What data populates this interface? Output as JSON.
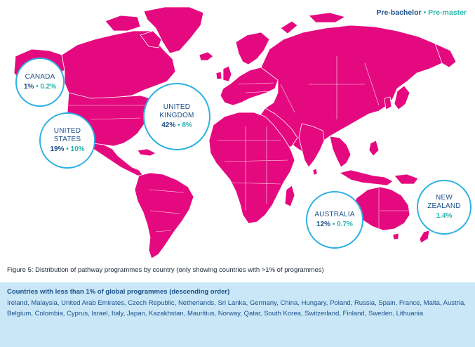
{
  "legend": {
    "pre_bachelor": "Pre-bachelor",
    "separator": "•",
    "pre_master": "Pre-master"
  },
  "colors": {
    "land": "#e5097f",
    "bubble_border": "#2db0e3",
    "pre_bachelor": "#1b4f8a",
    "pre_master": "#27b5b0",
    "info_box": "#c9e7f7"
  },
  "countries": [
    {
      "name_line1": "CANADA",
      "name_line2": "",
      "pre_bachelor": "1%",
      "pre_master": "0.2%"
    },
    {
      "name_line1": "UNITED",
      "name_line2": "STATES",
      "pre_bachelor": "19%",
      "pre_master": "10%"
    },
    {
      "name_line1": "UNITED",
      "name_line2": "KINGDOM",
      "pre_bachelor": "42%",
      "pre_master": "8%"
    },
    {
      "name_line1": "AUSTRALIA",
      "name_line2": "",
      "pre_bachelor": "12%",
      "pre_master": "0.7%"
    },
    {
      "name_line1": "NEW",
      "name_line2": "ZEALAND",
      "pre_bachelor": "",
      "pre_master": "1.4%"
    }
  ],
  "caption": "Figure 5: Distribution of pathway programmes by country (only showing countries with >1% of programmes)",
  "info_box": {
    "title": "Countries with less than 1% of global programmes (descending order)",
    "text": "Ireland, Malaysia, United Arab Emirates, Czech Republic, Netherlands, Sri Lanka, Germany, China, Hungary, Poland, Russia, Spain, France, Malta, Austria, Belgium, Colombia, Cyprus, Israel, Italy, Japan, Kazakhstan, Mauritius, Norway, Qatar, South Korea, Switzerland, Finland, Sweden, Lithuania"
  }
}
